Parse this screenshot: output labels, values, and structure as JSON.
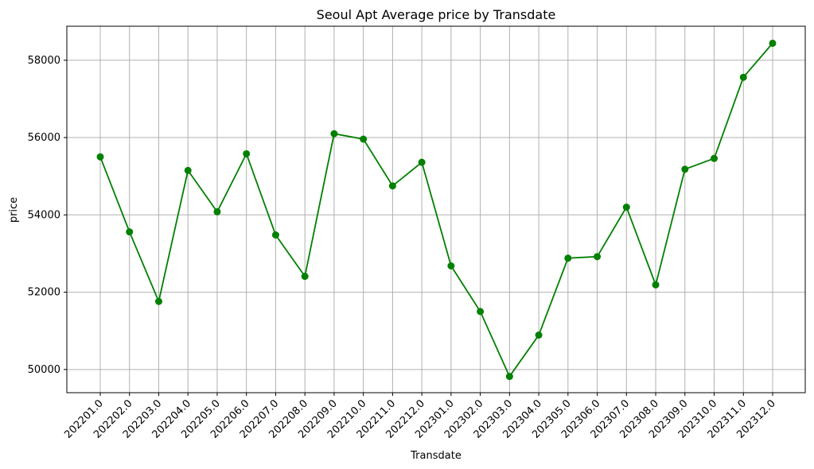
{
  "chart_data": {
    "type": "line",
    "title": "Seoul Apt Average price by Transdate",
    "xlabel": "Transdate",
    "ylabel": "price",
    "categories": [
      "202201.0",
      "202202.0",
      "202203.0",
      "202204.0",
      "202205.0",
      "202206.0",
      "202207.0",
      "202208.0",
      "202209.0",
      "202210.0",
      "202211.0",
      "202212.0",
      "202301.0",
      "202302.0",
      "202303.0",
      "202304.0",
      "202305.0",
      "202306.0",
      "202307.0",
      "202308.0",
      "202309.0",
      "202310.0",
      "202311.0",
      "202312.0"
    ],
    "values": [
      55500,
      53560,
      51760,
      55150,
      54080,
      55580,
      53480,
      52410,
      56100,
      55960,
      54750,
      55360,
      52680,
      51500,
      49820,
      50890,
      52880,
      52920,
      54200,
      52190,
      55180,
      55460,
      57560,
      58440
    ],
    "yticks": [
      "50000",
      "52000",
      "54000",
      "56000",
      "58000"
    ],
    "ylim": [
      49400,
      58880
    ],
    "grid": true,
    "line_color": "#008000",
    "marker": "circle"
  }
}
